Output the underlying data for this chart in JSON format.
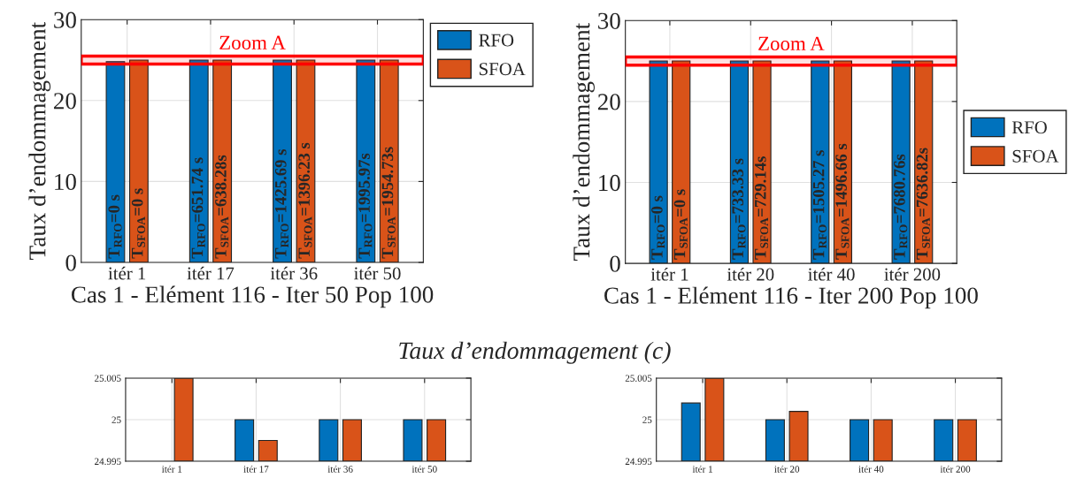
{
  "chart_data": [
    {
      "type": "bar",
      "categories": [
        "itér 1",
        "itér 17",
        "itér 36",
        "itér 50"
      ],
      "xlabel": "Cas 1 - Elément 116 - Iter 50 Pop 100",
      "ylabel": "Taux d’endommagement",
      "ylim": [
        0,
        30
      ],
      "yticks": [
        0,
        10,
        20,
        30
      ],
      "grid": true,
      "legend": "top right",
      "series": [
        {
          "name": "RFO",
          "color": "#0072bd",
          "values": [
            24.8,
            25,
            25,
            25
          ]
        },
        {
          "name": "SFOA",
          "color": "#d95319",
          "values": [
            25,
            25,
            25,
            25
          ]
        }
      ],
      "annotations": [
        "T$_{RFO}$=0 s",
        "T$_{SFOA}$=0 s",
        "T$_{RFO}$=651.74 s",
        "T$_{SFOA}$=638.28s",
        "T$_{RFO}$=1425.69 s",
        "T$_{SFOA}$=1396.23 s",
        "T$_{RFO}$=1995.97s",
        "T$_{SFOA}$=1954.73s"
      ],
      "bands": [
        {
          "axis": "y",
          "from": 24.5,
          "to": 25.5,
          "label": "Zoom A",
          "color": "#ff0000"
        }
      ]
    },
    {
      "type": "bar",
      "categories": [
        "itér 1",
        "itér 20",
        "itér 40",
        "itér 200"
      ],
      "xlabel": "Cas 1 - Elément 116 - Iter 200 Pop 100",
      "ylabel": "Taux d’endommagement",
      "ylim": [
        0,
        30
      ],
      "yticks": [
        0,
        10,
        20,
        30
      ],
      "grid": true,
      "legend": "right",
      "series": [
        {
          "name": "RFO",
          "color": "#0072bd",
          "values": [
            25,
            25,
            25,
            25
          ]
        },
        {
          "name": "SFOA",
          "color": "#d95319",
          "values": [
            25,
            25,
            25,
            25
          ]
        }
      ],
      "annotations": [
        "T$_{RFO}$=0 s",
        "T$_{SFOA}$=0 s",
        "T$_{RFO}$=733.33 s",
        "T$_{SFOA}$=729.14s",
        "T$_{RFO}$=1505.27 s",
        "T$_{SFOA}$=1496.66 s",
        "T$_{RFO}$=7680.76s",
        "T$_{SFOA}$=7636.82s"
      ],
      "bands": [
        {
          "axis": "y",
          "from": 24.5,
          "to": 25.5,
          "label": "Zoom A",
          "color": "#ff0000"
        }
      ]
    },
    {
      "type": "bar",
      "title": "Taux d’endommagement (c)",
      "categories": [
        "itér 1",
        "itér 17",
        "itér 36",
        "itér 50"
      ],
      "ylim": [
        24.995,
        25.005
      ],
      "yticks": [
        24.995,
        25,
        25.005
      ],
      "grid": true,
      "series": [
        {
          "color": "#0072bd",
          "values": [
            null,
            25,
            25,
            25
          ]
        },
        {
          "color": "#d95319",
          "values": [
            25.005,
            24.9975,
            25,
            25
          ]
        }
      ]
    },
    {
      "type": "bar",
      "categories": [
        "itér 1",
        "itér 20",
        "itér 40",
        "itér 200"
      ],
      "ylim": [
        24.995,
        25.005
      ],
      "yticks": [
        24.995,
        25,
        25.005
      ],
      "grid": true,
      "series": [
        {
          "color": "#0072bd",
          "values": [
            25.002,
            25,
            25,
            25
          ]
        },
        {
          "color": "#d95319",
          "values": [
            25.005,
            25.001,
            25,
            25
          ]
        }
      ]
    }
  ]
}
